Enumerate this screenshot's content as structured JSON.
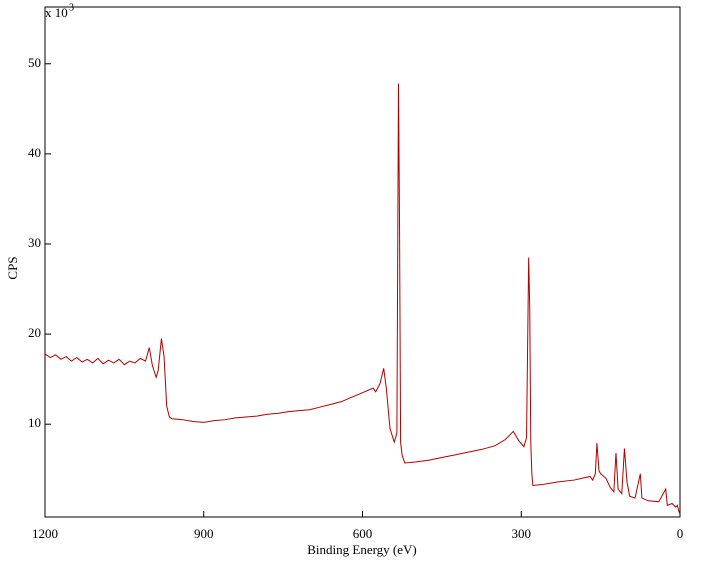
{
  "chart_data": {
    "type": "line",
    "x_label": "Binding Energy (eV)",
    "y_label": "CPS",
    "y_scale_label": "x 10",
    "y_scale_exp": "3",
    "xlim": [
      1200,
      0
    ],
    "xticks": [
      1200,
      900,
      600,
      300,
      0
    ],
    "ylim": [
      -0.3,
      56.3
    ],
    "yticks": [
      10,
      20,
      30,
      40,
      50
    ],
    "series": [
      {
        "color": "#b00000",
        "x": [
          1200,
          1190,
          1180,
          1170,
          1160,
          1150,
          1140,
          1130,
          1120,
          1110,
          1100,
          1090,
          1080,
          1070,
          1060,
          1050,
          1040,
          1030,
          1020,
          1010,
          1003,
          997,
          990,
          986,
          980,
          975,
          970,
          965,
          960,
          940,
          920,
          900,
          880,
          860,
          840,
          820,
          800,
          780,
          760,
          740,
          720,
          700,
          680,
          660,
          640,
          620,
          600,
          580,
          575,
          567,
          560,
          555,
          548,
          540,
          535,
          532,
          530,
          528,
          525,
          520,
          500,
          475,
          450,
          425,
          400,
          375,
          350,
          330,
          315,
          305,
          295,
          290,
          286,
          284,
          282,
          280,
          278,
          260,
          250,
          230,
          200,
          185,
          170,
          165,
          160,
          157,
          153,
          150,
          140,
          132,
          125,
          121,
          117,
          110,
          105,
          100,
          95,
          85,
          75,
          72,
          60,
          40,
          27,
          24,
          15,
          8,
          5,
          2,
          0
        ],
        "values": [
          17.8,
          17.4,
          17.7,
          17.2,
          17.5,
          17.0,
          17.4,
          16.9,
          17.2,
          16.8,
          17.3,
          16.7,
          17.1,
          16.8,
          17.2,
          16.6,
          17.0,
          16.8,
          17.3,
          17.0,
          18.5,
          16.5,
          15.2,
          16.0,
          19.5,
          17.5,
          12.0,
          10.8,
          10.6,
          10.5,
          10.3,
          10.2,
          10.4,
          10.5,
          10.7,
          10.8,
          10.9,
          11.1,
          11.2,
          11.4,
          11.5,
          11.6,
          11.9,
          12.2,
          12.5,
          13.0,
          13.5,
          14.0,
          13.6,
          14.5,
          16.2,
          14.0,
          9.5,
          8.0,
          9.0,
          47.8,
          32.0,
          8.0,
          6.5,
          5.7,
          5.8,
          6.0,
          6.3,
          6.6,
          6.9,
          7.2,
          7.6,
          8.3,
          9.2,
          8.2,
          7.5,
          8.5,
          28.5,
          23.0,
          8.0,
          4.5,
          3.2,
          3.3,
          3.4,
          3.6,
          3.8,
          4.0,
          4.2,
          3.8,
          4.5,
          7.9,
          4.8,
          4.5,
          4.0,
          3.0,
          2.5,
          6.8,
          2.8,
          2.3,
          7.3,
          3.5,
          2.0,
          1.8,
          4.5,
          1.8,
          1.5,
          1.4,
          2.8,
          1.0,
          1.2,
          0.8,
          1.0,
          0.3,
          0.0
        ]
      }
    ]
  }
}
